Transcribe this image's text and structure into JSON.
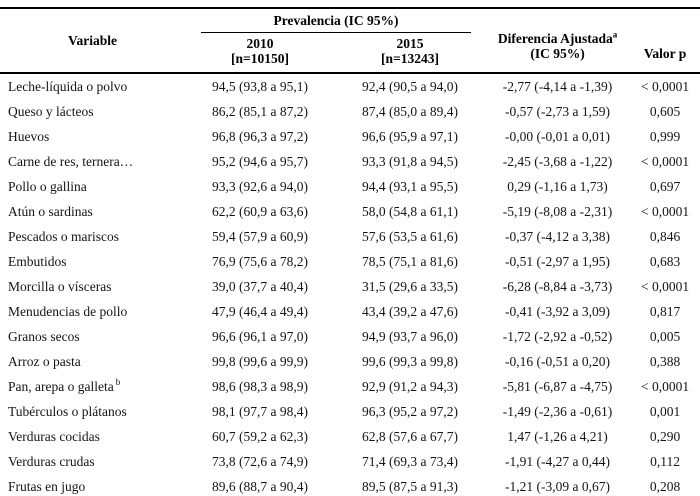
{
  "table": {
    "columns": {
      "variable": "Variable",
      "prevalencia_group": "Prevalencia (IC 95%)",
      "col_2010_line1": "2010",
      "col_2010_line2": "[n=10150]",
      "col_2015_line1": "2015",
      "col_2015_line2": "[n=13243]",
      "diff_line1": "Diferencia Ajustada",
      "diff_sup": "a",
      "diff_line2": "(IC 95%)",
      "valor_p": "Valor p"
    },
    "rows": [
      {
        "variable": "Leche-líquida o polvo",
        "prev_2010": "94,5 (93,8 a 95,1)",
        "prev_2015": "92,4 (90,5 a 94,0)",
        "diff": "-2,77 (-4,14 a -1,39)",
        "p": "< 0,0001"
      },
      {
        "variable": "Queso y lácteos",
        "prev_2010": "86,2 (85,1 a 87,2)",
        "prev_2015": "87,4 (85,0 a 89,4)",
        "diff": "-0,57 (-2,73 a 1,59)",
        "p": "0,605"
      },
      {
        "variable": "Huevos",
        "prev_2010": "96,8 (96,3 a 97,2)",
        "prev_2015": "96,6 (95,9 a 97,1)",
        "diff": "-0,00 (-0,01 a 0,01)",
        "p": "0,999"
      },
      {
        "variable": "Carne de res, ternera…",
        "prev_2010": "95,2 (94,6 a 95,7)",
        "prev_2015": "93,3 (91,8 a 94,5)",
        "diff": "-2,45 (-3,68 a -1,22)",
        "p": "< 0,0001"
      },
      {
        "variable": "Pollo o gallina",
        "prev_2010": "93,3 (92,6 a 94,0)",
        "prev_2015": "94,4 (93,1 a 95,5)",
        "diff": "0,29 (-1,16 a 1,73)",
        "p": "0,697"
      },
      {
        "variable": "Atún o sardinas",
        "prev_2010": "62,2 (60,9 a 63,6)",
        "prev_2015": "58,0 (54,8 a 61,1)",
        "diff": "-5,19 (-8,08 a -2,31)",
        "p": "< 0,0001"
      },
      {
        "variable": "Pescados o mariscos",
        "prev_2010": "59,4 (57,9 a 60,9)",
        "prev_2015": "57,6 (53,5 a 61,6)",
        "diff": "-0,37 (-4,12 a 3,38)",
        "p": "0,846"
      },
      {
        "variable": "Embutidos",
        "prev_2010": "76,9 (75,6 a 78,2)",
        "prev_2015": "78,5 (75,1 a 81,6)",
        "diff": "-0,51 (-2,97 a 1,95)",
        "p": "0,683"
      },
      {
        "variable": "Morcilla o vísceras",
        "prev_2010": "39,0 (37,7 a 40,4)",
        "prev_2015": "31,5 (29,6 a 33,5)",
        "diff": "-6,28 (-8,84 a -3,73)",
        "p": "< 0,0001"
      },
      {
        "variable": "Menudencias de pollo",
        "prev_2010": "47,9 (46,4 a 49,4)",
        "prev_2015": "43,4 (39,2 a 47,6)",
        "diff": "-0,41 (-3,92 a 3,09)",
        "p": "0,817"
      },
      {
        "variable": "Granos secos",
        "prev_2010": "96,6 (96,1 a 97,0)",
        "prev_2015": "94,9 (93,7 a 96,0)",
        "diff": "-1,72 (-2,92 a -0,52)",
        "p": "0,005"
      },
      {
        "variable": "Arroz o pasta",
        "prev_2010": "99,8 (99,6 a 99,9)",
        "prev_2015": "99,6 (99,3 a 99,8)",
        "diff": "-0,16 (-0,51 a 0,20)",
        "p": "0,388"
      },
      {
        "variable": "Pan, arepa o galleta",
        "sup": "b",
        "prev_2010": "98,6 (98,3 a 98,9)",
        "prev_2015": "92,9 (91,2 a 94,3)",
        "diff": "-5,81 (-6,87 a -4,75)",
        "p": "< 0,0001"
      },
      {
        "variable": "Tubérculos o plátanos",
        "prev_2010": "98,1 (97,7 a 98,4)",
        "prev_2015": "96,3 (95,2 a 97,2)",
        "diff": "-1,49 (-2,36 a -0,61)",
        "p": "0,001"
      },
      {
        "variable": "Verduras cocidas",
        "prev_2010": "60,7 (59,2 a 62,3)",
        "prev_2015": "62,8 (57,6 a 67,7)",
        "diff": "1,47 (-1,26 a 4,21)",
        "p": "0,290"
      },
      {
        "variable": "Verduras crudas",
        "prev_2010": "73,8 (72,6 a 74,9)",
        "prev_2015": "71,4 (69,3 a 73,4)",
        "diff": "-1,91 (-4,27 a 0,44)",
        "p": "0,112"
      },
      {
        "variable": "Frutas en jugo",
        "prev_2010": "89,6 (88,7 a 90,4)",
        "prev_2015": "89,5 (87,5 a 91,3)",
        "diff": "-1,21 (-3,09 a 0,67)",
        "p": "0,208"
      }
    ]
  }
}
